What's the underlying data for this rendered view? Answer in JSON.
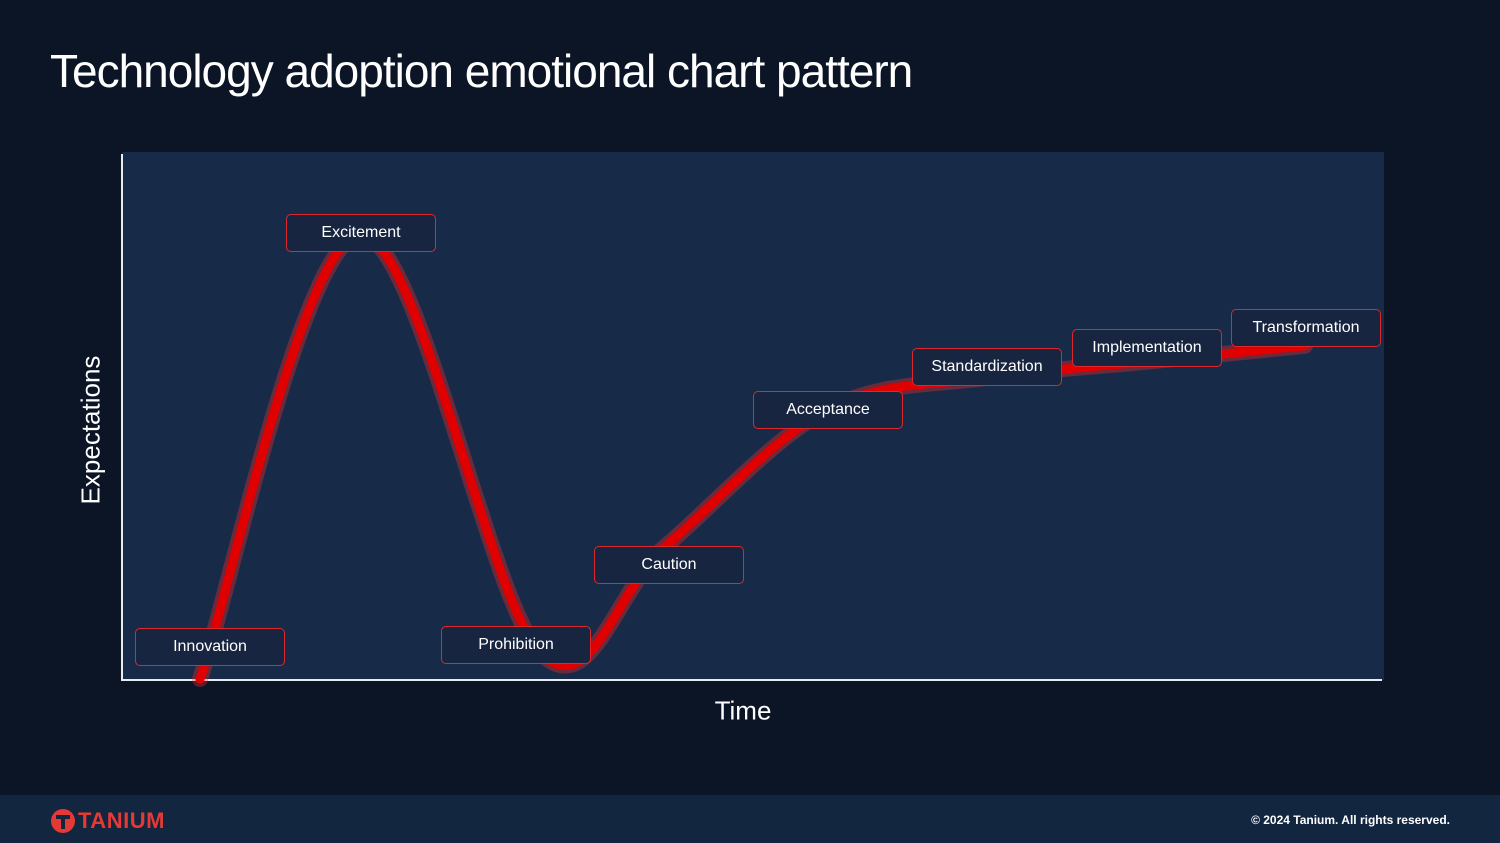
{
  "slide": {
    "title": "Technology adoption emotional chart pattern"
  },
  "chart_data": {
    "type": "line",
    "title": "",
    "xlabel": "Time",
    "ylabel": "Expectations",
    "x_ticks": false,
    "y_ticks": false,
    "ylim": [
      0,
      100
    ],
    "series": [
      {
        "color": "#e00000",
        "points": [
          {
            "label": "Innovation",
            "x": 0,
            "y": 0
          },
          {
            "label": "Excitement",
            "x": 1,
            "y": 84
          },
          {
            "label": "Prohibition",
            "x": 2,
            "y": 5
          },
          {
            "label": "Caution",
            "x": 3,
            "y": 25
          },
          {
            "label": "Acceptance",
            "x": 4,
            "y": 51
          },
          {
            "label": "Standardization",
            "x": 5,
            "y": 57
          },
          {
            "label": "Implementation",
            "x": 6,
            "y": 60
          },
          {
            "label": "Transformation",
            "x": 7,
            "y": 63
          }
        ]
      }
    ],
    "stages": [
      "Innovation",
      "Excitement",
      "Prohibition",
      "Caution",
      "Acceptance",
      "Standardization",
      "Implementation",
      "Transformation"
    ]
  },
  "footer": {
    "logo_text": "TANIUM",
    "copyright": "© 2024 Tanium. All rights reserved."
  },
  "colors": {
    "background": "#0b1526",
    "plot_area": "#172a47",
    "curve": "#e00000",
    "label_border": "#e0272b",
    "brand": "#e53935"
  }
}
